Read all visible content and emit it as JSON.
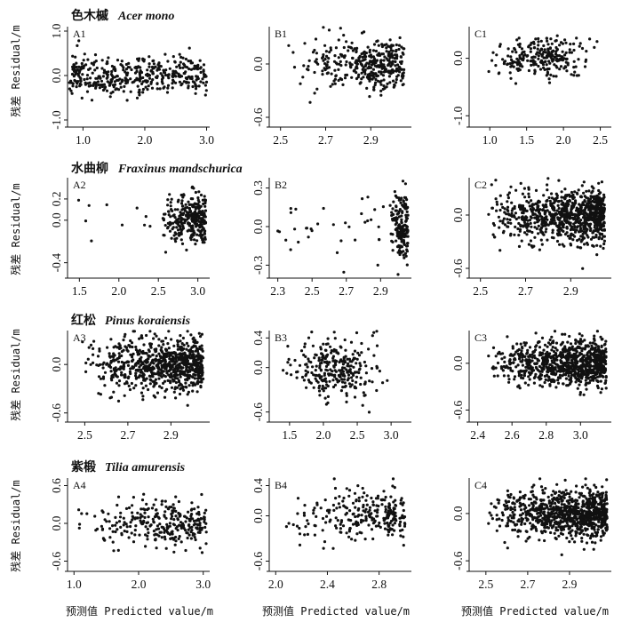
{
  "figure": {
    "ylabel": "残差 Residual/m",
    "xlabel": "预测值 Predicted value/m"
  },
  "species_titles": [
    {
      "cn": "色木槭",
      "latin": "Acer mono"
    },
    {
      "cn": "水曲柳",
      "latin": "Fraxinus mandschurica"
    },
    {
      "cn": "红松",
      "latin": "Pinus koraiensis"
    },
    {
      "cn": "紫椴",
      "latin": "Tilia amurensis"
    }
  ],
  "chart_data": [
    {
      "id": "A1",
      "type": "scatter",
      "xlim": [
        0.75,
        3.05
      ],
      "ylim": [
        -1.1,
        1.1
      ],
      "xticks": [
        "1.0",
        "2.0",
        "3.0"
      ],
      "xtick_values": [
        1.0,
        2.0,
        3.0
      ],
      "yticks": [
        "-1.0",
        "0.0",
        "1.0"
      ],
      "ytick_values": [
        -1.0,
        0.0,
        1.0
      ],
      "clusters": [
        {
          "n": 420,
          "x": [
            0.78,
            3.0
          ],
          "xmode": "uniform",
          "y_sd": 0.22,
          "seed": 11
        }
      ]
    },
    {
      "id": "B1",
      "type": "scatter",
      "xlim": [
        2.45,
        3.08
      ],
      "ylim": [
        -0.68,
        0.42
      ],
      "xticks": [
        "2.5",
        "2.7",
        "2.9"
      ],
      "xtick_values": [
        2.5,
        2.7,
        2.9
      ],
      "yticks": [
        "-0.6",
        "0.0"
      ],
      "ytick_values": [
        -0.6,
        0.0
      ],
      "clusters": [
        {
          "n": 380,
          "x": [
            2.52,
            3.05
          ],
          "xmode": "right",
          "y_sd": 0.14,
          "seed": 21
        }
      ]
    },
    {
      "id": "C1",
      "type": "scatter",
      "xlim": [
        0.72,
        2.65
      ],
      "ylim": [
        -1.15,
        0.55
      ],
      "xticks": [
        "1.0",
        "1.5",
        "2.0",
        "2.5"
      ],
      "xtick_values": [
        1.0,
        1.5,
        2.0,
        2.5
      ],
      "yticks": [
        "-1.0",
        "0.0"
      ],
      "ytick_values": [
        -1.0,
        0.0
      ],
      "clusters": [
        {
          "n": 250,
          "x": [
            0.82,
            2.58
          ],
          "xmode": "center",
          "y_sd": 0.16,
          "seed": 31
        }
      ]
    },
    {
      "id": "A2",
      "type": "scatter",
      "xlim": [
        1.35,
        3.15
      ],
      "ylim": [
        -0.52,
        0.4
      ],
      "xticks": [
        "1.5",
        "2.0",
        "2.5",
        "3.0"
      ],
      "xtick_values": [
        1.5,
        2.0,
        2.5,
        3.0
      ],
      "yticks": [
        "-0.4",
        "0.0",
        "0.2"
      ],
      "ytick_values": [
        -0.4,
        0.0,
        0.2
      ],
      "clusters": [
        {
          "n": 300,
          "x": [
            2.5,
            3.1
          ],
          "xmode": "right",
          "y_sd": 0.12,
          "seed": 41
        },
        {
          "n": 10,
          "x": [
            1.4,
            2.4
          ],
          "xmode": "uniform",
          "y_sd": 0.1,
          "seed": 42
        }
      ]
    },
    {
      "id": "B2",
      "type": "scatter",
      "xlim": [
        2.25,
        3.08
      ],
      "ylim": [
        -0.38,
        0.38
      ],
      "xticks": [
        "2.3",
        "2.5",
        "2.7",
        "2.9"
      ],
      "xtick_values": [
        2.3,
        2.5,
        2.7,
        2.9
      ],
      "yticks": [
        "-0.3",
        "0.0",
        "0.3"
      ],
      "ytick_values": [
        -0.3,
        0.0,
        0.3
      ],
      "clusters": [
        {
          "n": 180,
          "x": [
            2.95,
            3.06
          ],
          "xmode": "right",
          "y_sd": 0.12,
          "seed": 51
        },
        {
          "n": 35,
          "x": [
            2.3,
            2.95
          ],
          "xmode": "uniform",
          "y_sd": 0.14,
          "seed": 52
        }
      ]
    },
    {
      "id": "C2",
      "type": "scatter",
      "xlim": [
        2.45,
        3.08
      ],
      "ylim": [
        -0.68,
        0.42
      ],
      "xticks": [
        "2.5",
        "2.7",
        "2.9"
      ],
      "xtick_values": [
        2.5,
        2.7,
        2.9
      ],
      "yticks": [
        "-0.6",
        "0.0"
      ],
      "ytick_values": [
        -0.6,
        0.0
      ],
      "clusters": [
        {
          "n": 900,
          "x": [
            2.52,
            3.05
          ],
          "xmode": "right",
          "y_sd": 0.15,
          "seed": 61
        }
      ]
    },
    {
      "id": "A3",
      "type": "scatter",
      "xlim": [
        2.42,
        3.08
      ],
      "ylim": [
        -0.68,
        0.42
      ],
      "xticks": [
        "2.5",
        "2.7",
        "2.9"
      ],
      "xtick_values": [
        2.5,
        2.7,
        2.9
      ],
      "yticks": [
        "-0.6",
        "0.0"
      ],
      "ytick_values": [
        -0.6,
        0.0
      ],
      "clusters": [
        {
          "n": 800,
          "x": [
            2.48,
            3.05
          ],
          "xmode": "right",
          "y_sd": 0.16,
          "seed": 71
        }
      ]
    },
    {
      "id": "B3",
      "type": "scatter",
      "xlim": [
        1.2,
        3.3
      ],
      "ylim": [
        -0.7,
        0.5
      ],
      "xticks": [
        "1.5",
        "2.0",
        "2.5",
        "3.0"
      ],
      "xtick_values": [
        1.5,
        2.0,
        2.5,
        3.0
      ],
      "yticks": [
        "-0.6",
        "0.0",
        "0.4"
      ],
      "ytick_values": [
        -0.6,
        0.0,
        0.4
      ],
      "clusters": [
        {
          "n": 280,
          "x": [
            1.25,
            3.1
          ],
          "xmode": "center",
          "y_sd": 0.2,
          "seed": 81
        }
      ]
    },
    {
      "id": "C3",
      "type": "scatter",
      "xlim": [
        2.35,
        3.18
      ],
      "ylim": [
        -0.72,
        0.42
      ],
      "xticks": [
        "2.4",
        "2.6",
        "2.8",
        "3.0"
      ],
      "xtick_values": [
        2.4,
        2.6,
        2.8,
        3.0
      ],
      "yticks": [
        "-0.6",
        "0.0"
      ],
      "ytick_values": [
        -0.6,
        0.0
      ],
      "clusters": [
        {
          "n": 900,
          "x": [
            2.45,
            3.15
          ],
          "xmode": "right",
          "y_sd": 0.15,
          "seed": 91
        }
      ]
    },
    {
      "id": "A4",
      "type": "scatter",
      "xlim": [
        0.9,
        3.1
      ],
      "ylim": [
        -0.72,
        0.72
      ],
      "xticks": [
        "1.0",
        "2.0",
        "3.0"
      ],
      "xtick_values": [
        1.0,
        2.0,
        3.0
      ],
      "yticks": [
        "-0.6",
        "0.0",
        "0.6"
      ],
      "ytick_values": [
        -0.6,
        0.0,
        0.6
      ],
      "clusters": [
        {
          "n": 300,
          "x": [
            1.0,
            3.05
          ],
          "xmode": "right",
          "y_sd": 0.18,
          "seed": 101
        }
      ]
    },
    {
      "id": "B4",
      "type": "scatter",
      "xlim": [
        1.95,
        3.05
      ],
      "ylim": [
        -0.7,
        0.5
      ],
      "xticks": [
        "2.0",
        "2.4",
        "2.8"
      ],
      "xtick_values": [
        2.0,
        2.4,
        2.8
      ],
      "yticks": [
        "-0.6",
        "0.0",
        "0.4"
      ],
      "ytick_values": [
        -0.6,
        0.0,
        0.4
      ],
      "clusters": [
        {
          "n": 260,
          "x": [
            2.05,
            3.0
          ],
          "xmode": "right",
          "y_sd": 0.16,
          "seed": 111
        }
      ]
    },
    {
      "id": "C4",
      "type": "scatter",
      "xlim": [
        2.42,
        3.1
      ],
      "ylim": [
        -0.7,
        0.45
      ],
      "xticks": [
        "2.5",
        "2.7",
        "2.9"
      ],
      "xtick_values": [
        2.5,
        2.7,
        2.9
      ],
      "yticks": [
        "-0.6",
        "0.0"
      ],
      "ytick_values": [
        -0.6,
        0.0
      ],
      "clusters": [
        {
          "n": 900,
          "x": [
            2.5,
            3.08
          ],
          "xmode": "right",
          "y_sd": 0.15,
          "seed": 121
        }
      ]
    }
  ]
}
